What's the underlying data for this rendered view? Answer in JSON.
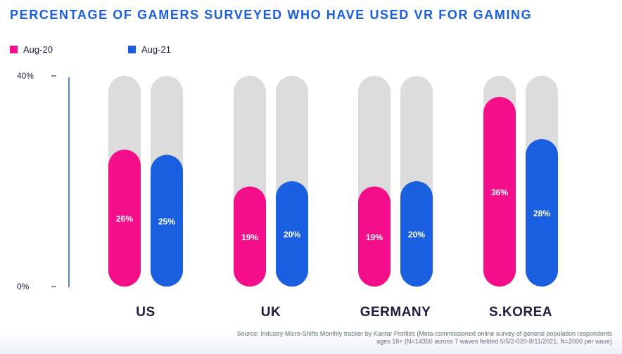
{
  "title": "PERCENTAGE OF GAMERS SURVEYED WHO HAVE USED VR FOR GAMING",
  "colors": {
    "series_aug20": "#f50e8a",
    "series_aug21": "#1a5fe0",
    "track": "#dcdcdc",
    "title": "#1a5fe0",
    "axis": "#1a5fe0",
    "category_label": "#1b1e3c"
  },
  "chart_data": {
    "type": "bar",
    "categories": [
      "US",
      "UK",
      "GERMANY",
      "S.KOREA"
    ],
    "series": [
      {
        "name": "Aug-20",
        "values": [
          26,
          19,
          19,
          36
        ]
      },
      {
        "name": "Aug-21",
        "values": [
          25,
          20,
          20,
          28
        ]
      }
    ],
    "value_labels": [
      [
        "26%",
        "19%",
        "19%",
        "36%"
      ],
      [
        "25%",
        "20%",
        "20%",
        "28%"
      ]
    ],
    "ylim": [
      0,
      40
    ],
    "y_ticks": [
      {
        "value": 40,
        "label": "40%"
      },
      {
        "value": 0,
        "label": "0%"
      }
    ],
    "unit": "%",
    "legend_position": "top-left",
    "grid": false
  },
  "source": "Source: Industry Micro-Shifts Monthly tracker by Kantar Profiles (Meta-commissioned online survey of general population respondents ages 18+ (N=14350 across 7 waves fielded 5/5/2-020-8/11/2021, N=2000 per wave)"
}
